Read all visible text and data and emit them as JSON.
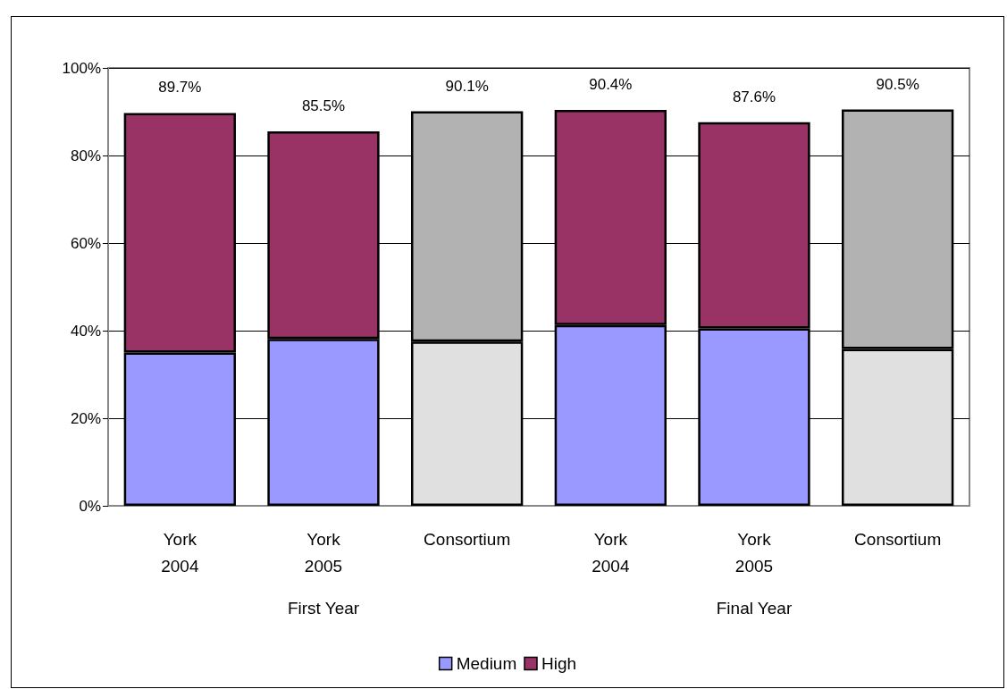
{
  "chart_data": {
    "type": "bar",
    "stacked": true,
    "categories": [
      "York 2004",
      "York 2005",
      "Consortium",
      "York 2004",
      "York 2005",
      "Consortium"
    ],
    "series": [
      {
        "name": "Medium",
        "color": "#9999ff",
        "colors": [
          "#9999ff",
          "#9999ff",
          "#e0e0e0",
          "#9999ff",
          "#9999ff",
          "#e0e0e0"
        ],
        "values": [
          35.0,
          38.1,
          37.5,
          41.3,
          40.5,
          35.8
        ]
      },
      {
        "name": "High",
        "color": "#993366",
        "colors": [
          "#993366",
          "#993366",
          "#b2b2b2",
          "#993366",
          "#993366",
          "#b2b2b2"
        ],
        "values": [
          54.7,
          47.4,
          52.6,
          49.1,
          47.1,
          54.7
        ]
      }
    ],
    "totals": [
      "89.7%",
      "85.5%",
      "90.1%",
      "90.4%",
      "87.6%",
      "90.5%"
    ],
    "ylim": [
      0,
      100
    ],
    "yticks": [
      {
        "value": 0,
        "label": "0%"
      },
      {
        "value": 20,
        "label": "20%"
      },
      {
        "value": 40,
        "label": "40%"
      },
      {
        "value": 60,
        "label": "60%"
      },
      {
        "value": 80,
        "label": "80%"
      },
      {
        "value": 100,
        "label": "100%"
      }
    ],
    "grid": "y",
    "legend": "bottom",
    "annotations": [
      "First Year",
      "Final Year"
    ]
  }
}
